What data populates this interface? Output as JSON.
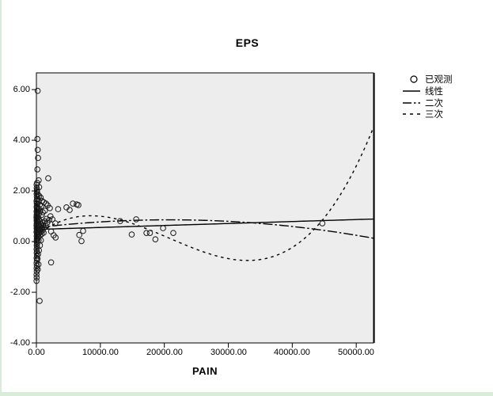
{
  "window": {
    "frame_color": "#d9ecd9",
    "background": "#ffffff"
  },
  "chart_data": {
    "type": "scatter",
    "title": "EPS",
    "xlabel": "PAIN",
    "ylabel": "",
    "plot_background": "#ededed",
    "line_color": "#000000",
    "grid": false,
    "legend_position": "right-top",
    "xlim": [
      0,
      52700
    ],
    "ylim": [
      -4,
      6.66
    ],
    "xticks": [
      0,
      10000,
      20000,
      30000,
      40000,
      50000
    ],
    "xtick_labels": [
      "0.00",
      "10000.00",
      "20000.00",
      "30000.00",
      "40000.00",
      "50000.00"
    ],
    "yticks": [
      6,
      4,
      2,
      0,
      -2,
      -4
    ],
    "ytick_labels": [
      "6.00",
      "4.00",
      "2.00",
      "0.00",
      "-2.00",
      "-4.00"
    ],
    "series": [
      {
        "name": "已观测",
        "type": "scatter",
        "marker": "circle-open",
        "points": [
          [
            200,
            5.95
          ],
          [
            150,
            4.05
          ],
          [
            200,
            3.62
          ],
          [
            260,
            3.3
          ],
          [
            150,
            2.85
          ],
          [
            360,
            2.42
          ],
          [
            120,
            2.32
          ],
          [
            430,
            2.15
          ],
          [
            80,
            2.05
          ],
          [
            1850,
            2.5
          ],
          [
            500,
            -2.34
          ],
          [
            2300,
            -0.82
          ],
          [
            100,
            1.95
          ],
          [
            260,
            1.85
          ],
          [
            430,
            1.8
          ],
          [
            660,
            1.74
          ],
          [
            180,
            1.68
          ],
          [
            900,
            1.6
          ],
          [
            330,
            1.58
          ],
          [
            1150,
            1.55
          ],
          [
            80,
            1.5
          ],
          [
            540,
            1.46
          ],
          [
            760,
            1.4
          ],
          [
            1500,
            1.5
          ],
          [
            1750,
            1.43
          ],
          [
            2100,
            1.32
          ],
          [
            60,
            1.36
          ],
          [
            380,
            1.3
          ],
          [
            240,
            1.26
          ],
          [
            1320,
            1.22
          ],
          [
            460,
            1.12
          ],
          [
            600,
            1.2
          ],
          [
            850,
            1.06
          ],
          [
            1000,
            1.16
          ],
          [
            4700,
            1.35
          ],
          [
            5200,
            1.25
          ],
          [
            5700,
            1.5
          ],
          [
            6300,
            1.47
          ],
          [
            6560,
            1.44
          ],
          [
            3400,
            1.28
          ],
          [
            2500,
            0.88
          ],
          [
            2950,
            0.72
          ],
          [
            2300,
            0.4
          ],
          [
            2700,
            0.25
          ],
          [
            3000,
            0.16
          ],
          [
            6700,
            0.26
          ],
          [
            7050,
            0.02
          ],
          [
            7300,
            0.42
          ],
          [
            13100,
            0.81
          ],
          [
            15600,
            0.88
          ],
          [
            14900,
            0.28
          ],
          [
            17200,
            0.34
          ],
          [
            17750,
            0.34
          ],
          [
            18600,
            0.09
          ],
          [
            19800,
            0.53
          ],
          [
            21400,
            0.34
          ],
          [
            44700,
            0.72
          ],
          [
            15,
            -1.55
          ],
          [
            40,
            -1.42
          ],
          [
            20,
            -1.3
          ],
          [
            55,
            -1.18
          ],
          [
            30,
            -1.05
          ],
          [
            60,
            -0.95
          ],
          [
            25,
            -0.85
          ],
          [
            70,
            -0.75
          ],
          [
            35,
            -0.65
          ],
          [
            80,
            -0.55
          ],
          [
            45,
            -0.45
          ],
          [
            90,
            -0.38
          ],
          [
            25,
            -0.3
          ],
          [
            100,
            -0.22
          ],
          [
            50,
            -0.15
          ],
          [
            110,
            -0.08
          ],
          [
            30,
            0.0
          ],
          [
            120,
            0.05
          ],
          [
            60,
            0.1
          ],
          [
            130,
            0.16
          ],
          [
            40,
            0.22
          ],
          [
            140,
            0.28
          ],
          [
            70,
            0.33
          ],
          [
            20,
            0.38
          ],
          [
            150,
            0.42
          ],
          [
            80,
            0.47
          ],
          [
            35,
            0.52
          ],
          [
            110,
            0.56
          ],
          [
            55,
            0.6
          ],
          [
            25,
            0.64
          ],
          [
            95,
            0.68
          ],
          [
            45,
            0.72
          ],
          [
            130,
            0.76
          ],
          [
            65,
            0.8
          ],
          [
            30,
            0.84
          ],
          [
            105,
            0.88
          ],
          [
            50,
            0.92
          ],
          [
            20,
            0.96
          ],
          [
            85,
            1.0
          ],
          [
            40,
            1.05
          ],
          [
            125,
            1.1
          ],
          [
            60,
            1.15
          ],
          [
            30,
            1.2
          ],
          [
            100,
            1.26
          ],
          [
            70,
            1.32
          ],
          [
            45,
            1.38
          ],
          [
            115,
            1.44
          ],
          [
            55,
            1.52
          ],
          [
            25,
            1.6
          ],
          [
            90,
            1.68
          ],
          [
            60,
            1.78
          ],
          [
            35,
            1.88
          ],
          [
            75,
            2.0
          ],
          [
            50,
            2.12
          ],
          [
            28,
            2.25
          ],
          [
            170,
            0.1
          ],
          [
            200,
            0.3
          ],
          [
            230,
            0.55
          ],
          [
            260,
            0.75
          ],
          [
            290,
            0.95
          ],
          [
            320,
            0.2
          ],
          [
            360,
            0.45
          ],
          [
            400,
            0.65
          ],
          [
            440,
            0.85
          ],
          [
            480,
            0.35
          ],
          [
            520,
            0.6
          ],
          [
            560,
            0.8
          ],
          [
            600,
            0.25
          ],
          [
            640,
            0.5
          ],
          [
            680,
            0.7
          ],
          [
            730,
            0.4
          ],
          [
            780,
            0.62
          ],
          [
            830,
            0.3
          ],
          [
            880,
            0.55
          ],
          [
            930,
            0.75
          ],
          [
            990,
            0.45
          ],
          [
            1050,
            0.65
          ],
          [
            1120,
            0.35
          ],
          [
            1200,
            0.55
          ],
          [
            1300,
            0.8
          ],
          [
            1400,
            0.65
          ],
          [
            1600,
            0.9
          ],
          [
            1700,
            0.75
          ],
          [
            2000,
            0.85
          ],
          [
            2200,
            1.0
          ],
          [
            260,
            -0.5
          ],
          [
            180,
            -0.68
          ],
          [
            320,
            -0.9
          ],
          [
            220,
            -1.1
          ],
          [
            400,
            -0.35
          ],
          [
            350,
            0.05
          ],
          [
            550,
            -0.15
          ],
          [
            700,
            0.05
          ]
        ]
      },
      {
        "name": "线性",
        "type": "line",
        "style": "solid",
        "poly_coeffs": [
          0.48,
          7.8e-06
        ]
      },
      {
        "name": "二次",
        "type": "line",
        "style": "dashdot",
        "poly_coeffs": [
          0.55,
          2.98e-05,
          -7.16e-10
        ]
      },
      {
        "name": "三次",
        "type": "line",
        "style": "dashed",
        "poly_coeffs": [
          0.235,
          0.00020196,
          -1.494e-08,
          2.4e-13
        ]
      }
    ]
  }
}
